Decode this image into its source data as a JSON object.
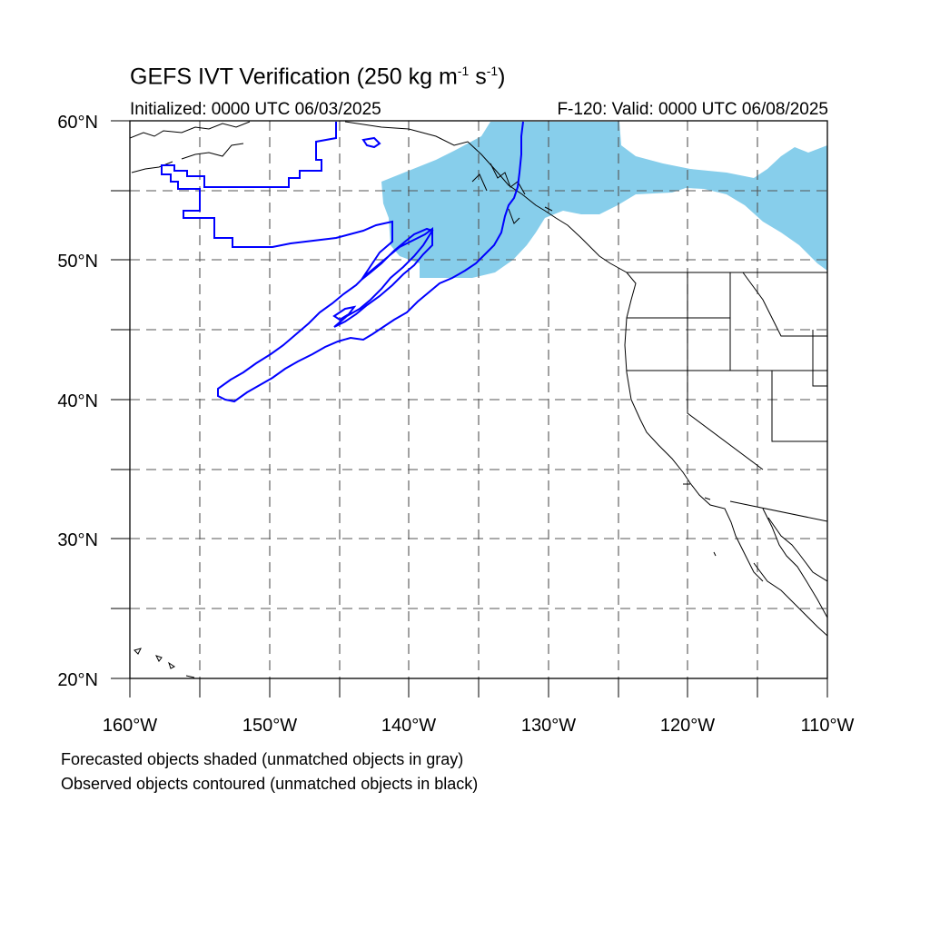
{
  "title": {
    "text": "GEFS IVT Verification (250 kg m",
    "exp1": "-1",
    "mid": " s",
    "exp2": "-1",
    "close": ")"
  },
  "initialized": "Initialized: 0000 UTC 06/03/2025",
  "valid": "F-120: Valid: 0000 UTC 06/08/2025",
  "lat_labels": [
    "60°N",
    "50°N",
    "40°N",
    "30°N",
    "20°N"
  ],
  "lon_labels": [
    "160°W",
    "150°W",
    "140°W",
    "130°W",
    "120°W",
    "110°W"
  ],
  "footnotes": [
    "Forecasted objects shaded (unmatched objects in gray)",
    "Observed objects contoured (unmatched objects in black)"
  ],
  "colors": {
    "forecast_fill": "#87ceeb",
    "observed_contour": "#0000ff",
    "coastline": "#000000",
    "grid": "#555555"
  }
}
